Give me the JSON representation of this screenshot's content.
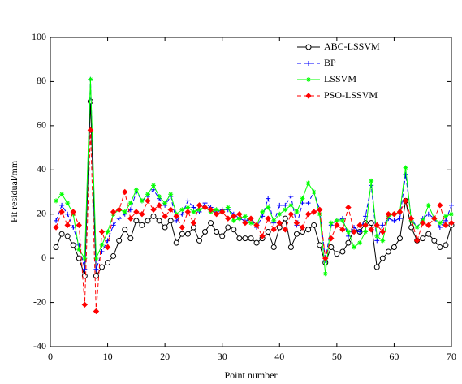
{
  "chart_data": {
    "type": "line",
    "xlabel": "Point number",
    "ylabel": "Fit residual/mm",
    "x": [
      1,
      2,
      3,
      4,
      5,
      6,
      7,
      8,
      9,
      10,
      11,
      12,
      13,
      14,
      15,
      16,
      17,
      18,
      19,
      20,
      21,
      22,
      23,
      24,
      25,
      26,
      27,
      28,
      29,
      30,
      31,
      32,
      33,
      34,
      35,
      36,
      37,
      38,
      39,
      40,
      41,
      42,
      43,
      44,
      45,
      46,
      47,
      48,
      49,
      50,
      51,
      52,
      53,
      54,
      55,
      56,
      57,
      58,
      59,
      60,
      61,
      62,
      63,
      64,
      65,
      66,
      67,
      68,
      69,
      70
    ],
    "series": [
      {
        "name": "ABC-LSSVM",
        "color": "#000000",
        "marker": "circle",
        "dash": "solid",
        "values": [
          5,
          11,
          10,
          6,
          0,
          -8,
          71,
          -8,
          -4,
          -2,
          1,
          8,
          13,
          9,
          17,
          15,
          17,
          19,
          17,
          14,
          17,
          7,
          11,
          11,
          14,
          8,
          12,
          16,
          12,
          10,
          14,
          13,
          9,
          9,
          9,
          7,
          9,
          12,
          5,
          14,
          18,
          5,
          11,
          12,
          13,
          15,
          6,
          -2,
          5,
          2,
          3,
          7,
          13,
          12,
          16,
          16,
          -4,
          0,
          3,
          5,
          9,
          26,
          14,
          8,
          9,
          11,
          8,
          5,
          6,
          15
        ]
      },
      {
        "name": "BP",
        "color": "#0000ff",
        "marker": "plus",
        "dash": "dashed",
        "values": [
          17,
          24,
          20,
          14,
          6,
          -5,
          81,
          -5,
          3,
          8,
          15,
          18,
          20,
          22,
          30,
          26,
          28,
          31,
          27,
          24,
          28,
          17,
          20,
          26,
          23,
          21,
          25,
          23,
          21,
          22,
          22,
          20,
          18,
          17,
          18,
          14,
          19,
          27,
          16,
          24,
          24,
          28,
          15,
          25,
          25,
          30,
          22,
          -1,
          15,
          17,
          18,
          10,
          14,
          12,
          19,
          33,
          8,
          15,
          18,
          17,
          18,
          38,
          18,
          14,
          18,
          20,
          18,
          14,
          17,
          24
        ]
      },
      {
        "name": "LSSVM",
        "color": "#00ff00",
        "marker": "star",
        "dash": "solid",
        "values": [
          26,
          29,
          25,
          20,
          4,
          0,
          81,
          0,
          6,
          12,
          20,
          22,
          21,
          25,
          31,
          26,
          29,
          33,
          28,
          25,
          29,
          20,
          22,
          23,
          21,
          22,
          23,
          21,
          22,
          21,
          23,
          17,
          18,
          19,
          16,
          15,
          21,
          23,
          17,
          20,
          22,
          24,
          21,
          27,
          34,
          30,
          20,
          -7,
          16,
          17,
          17,
          12,
          5,
          7,
          12,
          35,
          10,
          8,
          19,
          20,
          21,
          41,
          17,
          14,
          17,
          24,
          18,
          16,
          19,
          20
        ]
      },
      {
        "name": "PSO-LSSVM",
        "color": "#ff0000",
        "marker": "diamond",
        "dash": "dashed",
        "values": [
          14,
          21,
          15,
          21,
          15,
          -21,
          58,
          -24,
          12,
          5,
          21,
          22,
          30,
          18,
          21,
          20,
          26,
          22,
          24,
          19,
          22,
          19,
          14,
          21,
          16,
          24,
          23,
          22,
          20,
          21,
          18,
          19,
          20,
          16,
          18,
          15,
          10,
          18,
          13,
          16,
          13,
          20,
          16,
          14,
          20,
          21,
          22,
          0,
          9,
          15,
          13,
          23,
          12,
          15,
          15,
          13,
          15,
          12,
          20,
          20,
          21,
          26,
          18,
          8,
          16,
          15,
          18,
          24,
          15,
          16
        ]
      }
    ],
    "xlim": [
      0,
      70
    ],
    "xticks": [
      0,
      10,
      20,
      30,
      40,
      50,
      60,
      70
    ],
    "ylim": [
      -40,
      100
    ],
    "yticks": [
      -40,
      -20,
      0,
      20,
      40,
      60,
      80,
      100
    ],
    "grid": false,
    "legend": "upper right"
  }
}
